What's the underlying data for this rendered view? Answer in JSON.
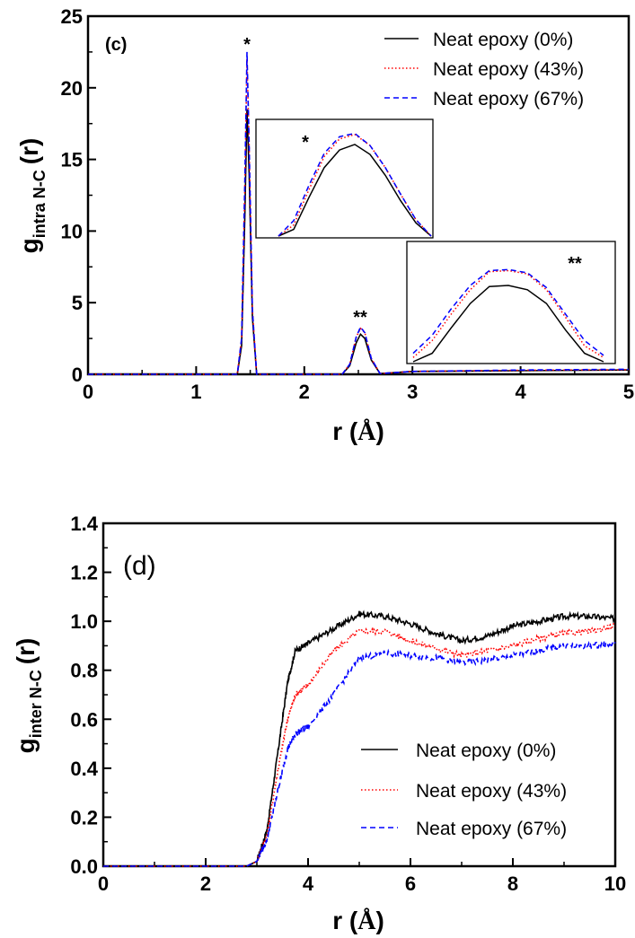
{
  "chart_data": [
    {
      "type": "line",
      "panel_label": "(c)",
      "ylabel_main": "g",
      "ylabel_sub": "intra N-C",
      "ylabel_tail": "(r)",
      "xlabel_main": "r (",
      "xlabel_unit": "Å",
      "xlabel_tail": ")",
      "xlim": [
        0,
        5
      ],
      "ylim": [
        0,
        25
      ],
      "xticks": [
        "0",
        "1",
        "2",
        "3",
        "4",
        "5"
      ],
      "yticks": [
        "0",
        "5",
        "10",
        "15",
        "20",
        "25"
      ],
      "legend_position": "top-right",
      "annotations": [
        "*",
        "**"
      ],
      "series": [
        {
          "name": "Neat epoxy (0%)",
          "color": "#000000",
          "dash": "solid",
          "x": [
            0,
            1.38,
            1.42,
            1.45,
            1.47,
            1.49,
            1.52,
            1.56,
            2.35,
            2.42,
            2.48,
            2.52,
            2.56,
            2.62,
            2.7,
            3.0,
            4.0,
            5.0
          ],
          "y": [
            0,
            0,
            2,
            11,
            18.5,
            14,
            4,
            0,
            0,
            0.6,
            2.2,
            2.8,
            2.5,
            1.0,
            0.05,
            0.2,
            0.25,
            0.3
          ]
        },
        {
          "name": "Neat epoxy (43%)",
          "color": "#ff0000",
          "dash": "dotted",
          "x": [
            0,
            1.38,
            1.42,
            1.45,
            1.47,
            1.49,
            1.52,
            1.56,
            2.35,
            2.42,
            2.48,
            2.52,
            2.56,
            2.62,
            2.7,
            3.0,
            4.0,
            5.0
          ],
          "y": [
            0,
            0,
            2.5,
            13,
            22,
            16,
            4.5,
            0,
            0,
            0.7,
            2.6,
            3.2,
            2.9,
            1.1,
            0.05,
            0.2,
            0.28,
            0.32
          ]
        },
        {
          "name": "Neat epoxy (67%)",
          "color": "#0000ff",
          "dash": "dashed",
          "x": [
            0,
            1.38,
            1.42,
            1.45,
            1.47,
            1.49,
            1.52,
            1.56,
            2.35,
            2.42,
            2.48,
            2.52,
            2.56,
            2.62,
            2.7,
            3.0,
            4.0,
            5.0
          ],
          "y": [
            0,
            0,
            2.5,
            13.5,
            22.5,
            16,
            4.5,
            0,
            0,
            0.7,
            2.6,
            3.3,
            2.9,
            1.1,
            0.05,
            0.2,
            0.3,
            0.35
          ]
        }
      ],
      "insets": [
        {
          "label": "*",
          "x": [
            0,
            0.1,
            0.2,
            0.3,
            0.4,
            0.5,
            0.6,
            0.7,
            0.8,
            0.9,
            1.0
          ],
          "series_y": [
            [
              0.0,
              0.06,
              0.35,
              0.62,
              0.78,
              0.83,
              0.74,
              0.55,
              0.32,
              0.12,
              0.0
            ],
            [
              0.0,
              0.1,
              0.42,
              0.72,
              0.88,
              0.92,
              0.82,
              0.62,
              0.38,
              0.15,
              0.0
            ],
            [
              0.0,
              0.14,
              0.46,
              0.75,
              0.9,
              0.93,
              0.82,
              0.62,
              0.38,
              0.15,
              0.0
            ]
          ]
        },
        {
          "label": "**",
          "x": [
            0,
            0.1,
            0.2,
            0.3,
            0.4,
            0.5,
            0.6,
            0.7,
            0.8,
            0.9,
            1.0
          ],
          "series_y": [
            [
              0.0,
              0.08,
              0.32,
              0.55,
              0.71,
              0.72,
              0.68,
              0.55,
              0.3,
              0.08,
              0.0
            ],
            [
              0.04,
              0.2,
              0.45,
              0.68,
              0.85,
              0.86,
              0.83,
              0.68,
              0.42,
              0.15,
              0.04
            ],
            [
              0.08,
              0.25,
              0.5,
              0.72,
              0.86,
              0.87,
              0.84,
              0.7,
              0.45,
              0.2,
              0.06
            ]
          ]
        }
      ]
    },
    {
      "type": "line",
      "panel_label": "(d)",
      "ylabel_main": "g",
      "ylabel_sub": "inter N-C",
      "ylabel_tail": "(r)",
      "xlabel_main": "r (",
      "xlabel_unit": "Å",
      "xlabel_tail": ")",
      "xlim": [
        0,
        10
      ],
      "ylim": [
        0,
        1.4
      ],
      "xticks": [
        "0",
        "2",
        "4",
        "6",
        "8",
        "10"
      ],
      "yticks": [
        "0.0",
        "0.2",
        "0.4",
        "0.6",
        "0.8",
        "1.0",
        "1.2",
        "1.4"
      ],
      "legend_position": "bottom-right",
      "series": [
        {
          "name": "Neat epoxy (0%)",
          "color": "#000000",
          "dash": "solid",
          "x": [
            0,
            2.8,
            3.0,
            3.2,
            3.4,
            3.6,
            3.75,
            4.0,
            4.5,
            5.0,
            5.5,
            6.0,
            6.5,
            7.0,
            7.5,
            8.0,
            8.5,
            9.0,
            9.5,
            10.0
          ],
          "y": [
            0,
            0,
            0.02,
            0.15,
            0.45,
            0.75,
            0.88,
            0.91,
            0.97,
            1.03,
            1.02,
            0.99,
            0.95,
            0.92,
            0.94,
            0.98,
            1.0,
            1.02,
            1.02,
            1.01
          ]
        },
        {
          "name": "Neat epoxy (43%)",
          "color": "#ff0000",
          "dash": "dotted",
          "x": [
            0,
            2.8,
            3.0,
            3.2,
            3.4,
            3.6,
            3.75,
            4.0,
            4.5,
            5.0,
            5.5,
            6.0,
            6.5,
            7.0,
            7.5,
            8.0,
            8.5,
            9.0,
            9.5,
            10.0
          ],
          "y": [
            0,
            0,
            0.02,
            0.13,
            0.38,
            0.6,
            0.7,
            0.74,
            0.88,
            0.96,
            0.96,
            0.92,
            0.89,
            0.86,
            0.88,
            0.9,
            0.93,
            0.95,
            0.96,
            0.98
          ]
        },
        {
          "name": "Neat epoxy (67%)",
          "color": "#0000ff",
          "dash": "dashed",
          "x": [
            0,
            2.8,
            3.0,
            3.2,
            3.4,
            3.6,
            3.75,
            4.0,
            4.5,
            5.0,
            5.5,
            6.0,
            6.5,
            7.0,
            7.5,
            8.0,
            8.5,
            9.0,
            9.5,
            10.0
          ],
          "y": [
            0,
            0,
            0.02,
            0.11,
            0.3,
            0.48,
            0.54,
            0.57,
            0.7,
            0.85,
            0.87,
            0.86,
            0.85,
            0.83,
            0.84,
            0.86,
            0.88,
            0.9,
            0.9,
            0.91
          ]
        }
      ]
    }
  ]
}
